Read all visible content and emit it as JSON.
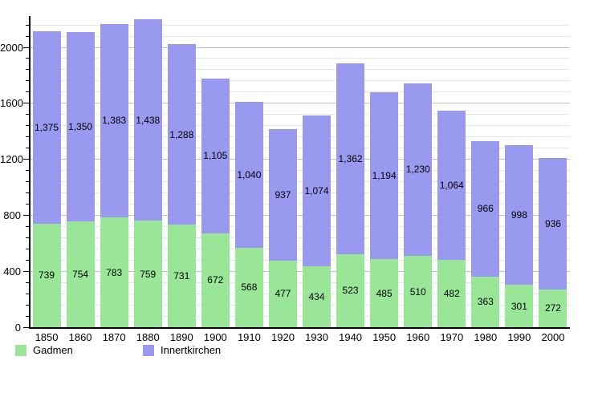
{
  "chart_data": {
    "type": "bar",
    "stacked": true,
    "title": "",
    "xlabel": "",
    "ylabel": "",
    "categories": [
      "1850",
      "1860",
      "1870",
      "1880",
      "1890",
      "1900",
      "1910",
      "1920",
      "1930",
      "1940",
      "1950",
      "1960",
      "1970",
      "1980",
      "1990",
      "2000"
    ],
    "series": [
      {
        "name": "Gadmen",
        "color": "#99E699",
        "values": [
          739,
          754,
          783,
          759,
          731,
          672,
          568,
          477,
          434,
          523,
          485,
          510,
          482,
          363,
          301,
          272
        ],
        "labels": [
          "739",
          "754",
          "783",
          "759",
          "731",
          "672",
          "568",
          "477",
          "434",
          "523",
          "485",
          "510",
          "482",
          "363",
          "301",
          "272"
        ]
      },
      {
        "name": "Innertkirchen",
        "color": "#9999F0",
        "values": [
          1375,
          1350,
          1383,
          1438,
          1288,
          1105,
          1040,
          937,
          1074,
          1362,
          1194,
          1230,
          1064,
          966,
          998,
          936
        ],
        "labels": [
          "1,375",
          "1,350",
          "1,383",
          "1,438",
          "1,288",
          "1,105",
          "1,040",
          "937",
          "1,074",
          "1,362",
          "1,194",
          "1,230",
          "1,064",
          "966",
          "998",
          "936"
        ]
      }
    ],
    "ylim": [
      0,
      2220
    ],
    "yticks": [
      0,
      400,
      800,
      1200,
      1600,
      2000
    ],
    "ytick_labels": [
      "0",
      "400",
      "800",
      "1200",
      "1600",
      "2000"
    ],
    "minor_grid_step": 80,
    "major_grid_step": 400,
    "grid": true,
    "legend_position": "bottom",
    "value_labels": "inside-center"
  },
  "colors": {
    "background": "#ffffff",
    "axis": "#000000",
    "grid_minor": "#e7e7e7",
    "grid_major": "#c2c2c2",
    "text": "#000000"
  }
}
